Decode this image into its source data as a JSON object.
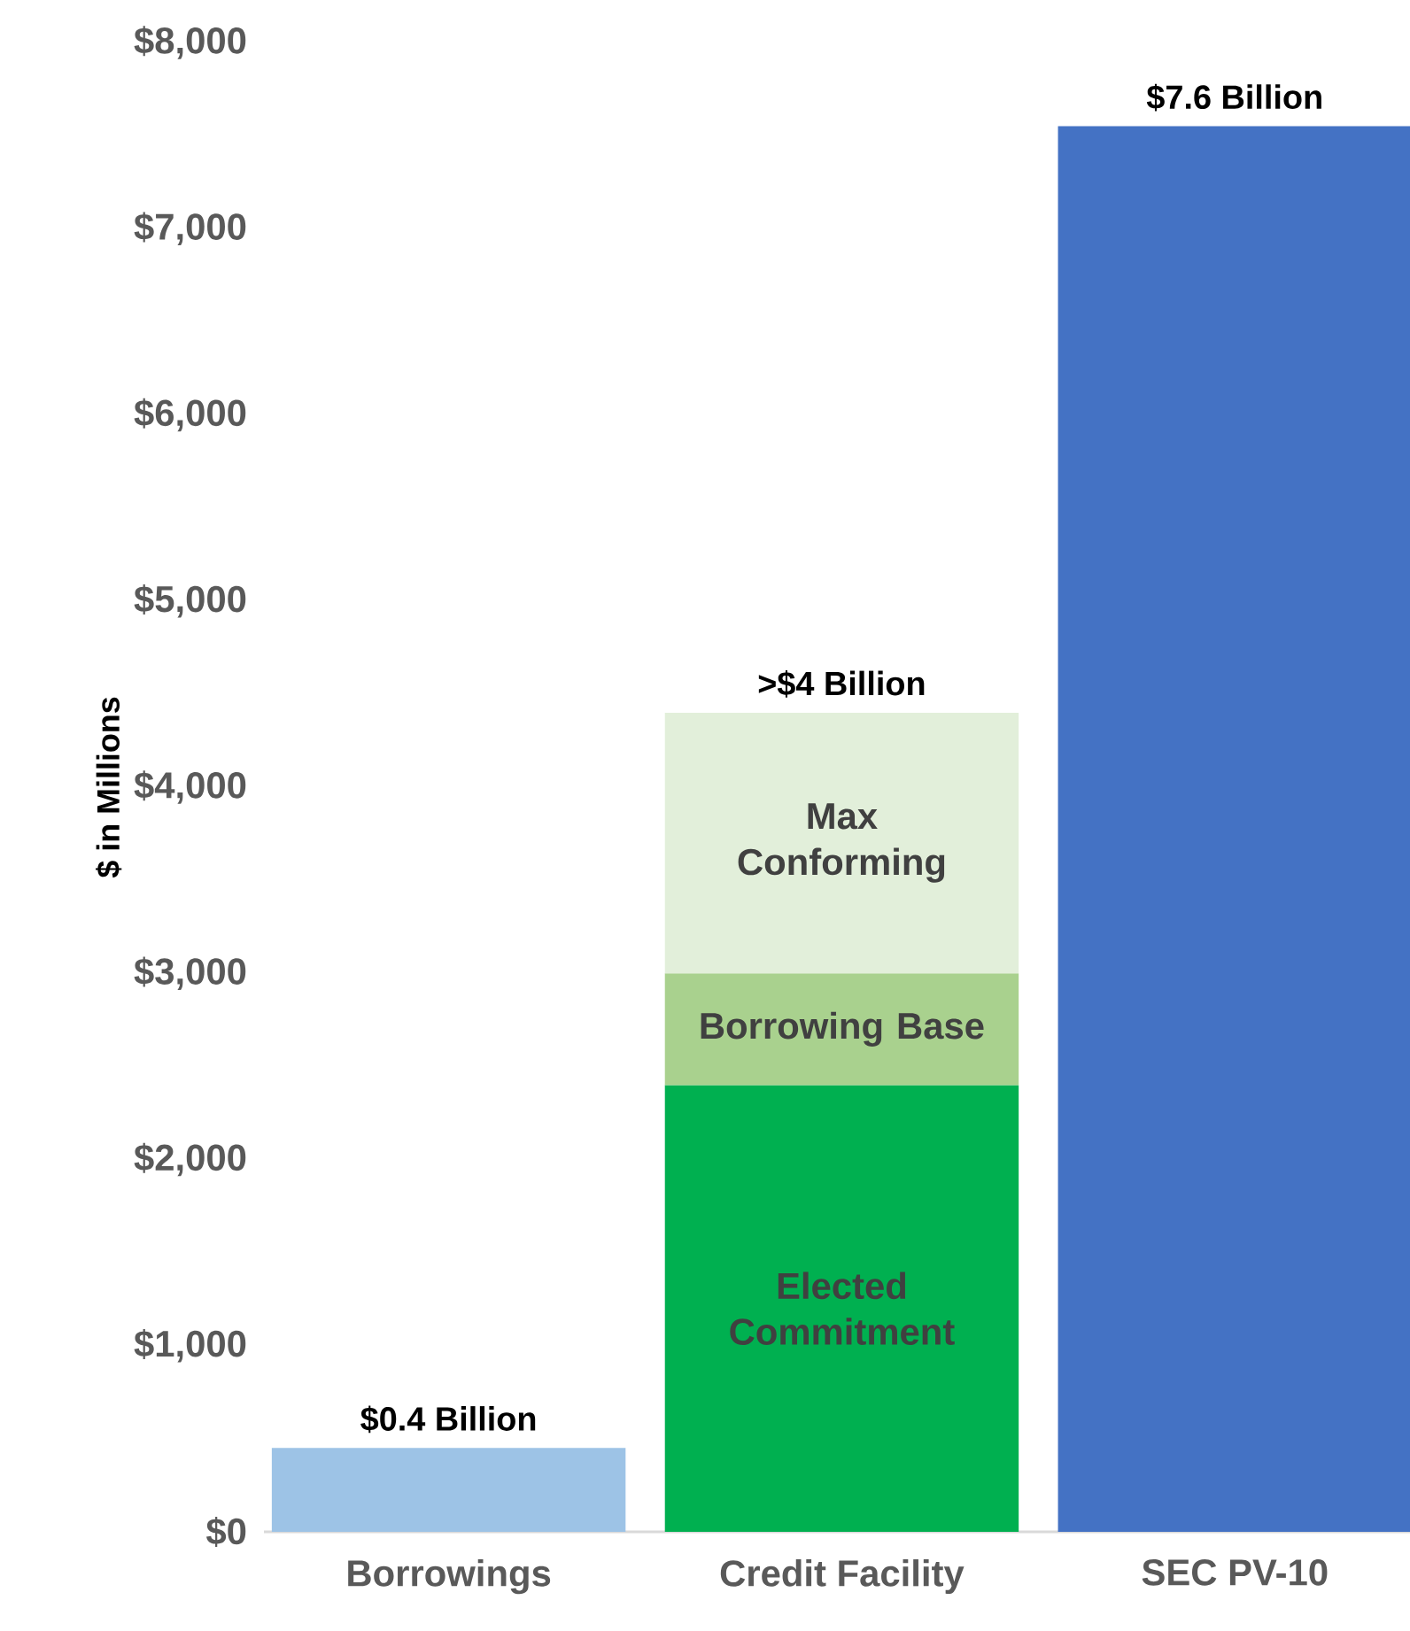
{
  "chart_data": {
    "type": "bar",
    "stacked": true,
    "ylabel": "$ in Millions",
    "categories": [
      "Borrowings",
      "Credit Facility",
      "SEC PV-10"
    ],
    "ylim": [
      0,
      8000
    ],
    "yticks": [
      {
        "value": 0,
        "label": "$0"
      },
      {
        "value": 1000,
        "label": "$1,000"
      },
      {
        "value": 2000,
        "label": "$2,000"
      },
      {
        "value": 3000,
        "label": "$3,000"
      },
      {
        "value": 4000,
        "label": "$4,000"
      },
      {
        "value": 5000,
        "label": "$5,000"
      },
      {
        "value": 6000,
        "label": "$6,000"
      },
      {
        "value": 7000,
        "label": "$7,000"
      },
      {
        "value": 8000,
        "label": "$8,000"
      }
    ],
    "series": [
      {
        "colors": [
          "#9dc3e6",
          null,
          "#4472c4"
        ],
        "values": [
          450,
          null,
          7550
        ]
      },
      {
        "name": "Elected Commitment",
        "color": "#00b050",
        "values": [
          null,
          2400,
          null
        ]
      },
      {
        "name": "Borrowing Base",
        "color": "#a9d18e",
        "values": [
          null,
          600,
          null
        ]
      },
      {
        "name": "Max Conforming",
        "color": "#e2efda",
        "values": [
          null,
          1400,
          null
        ]
      }
    ],
    "annotations": [
      {
        "text": "$0.4 Billion",
        "x": "Borrowings",
        "y": 450
      },
      {
        "text": ">$4 Billion",
        "x": "Credit Facility",
        "y": 4400
      },
      {
        "text": "$7.6 Billion",
        "x": "SEC PV-10",
        "y": 7550
      }
    ]
  }
}
